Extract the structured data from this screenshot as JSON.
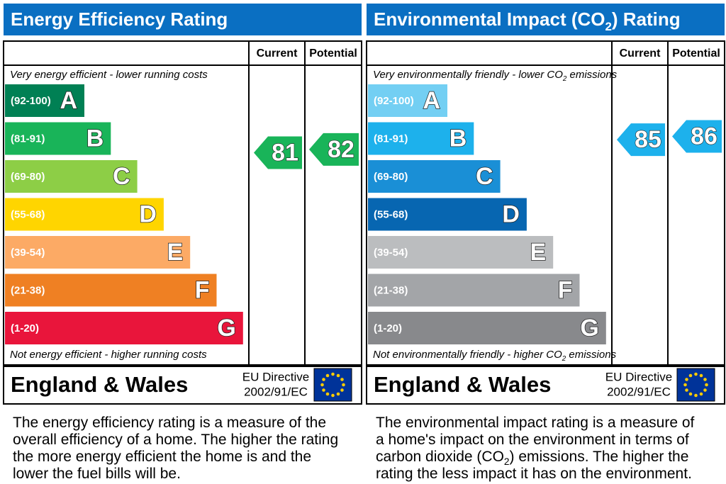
{
  "panels": [
    {
      "title": [
        "Energy Efficiency Rating"
      ],
      "col_current": "Current",
      "col_potential": "Potential",
      "top_note": [
        "Very energy efficient - lower running costs"
      ],
      "bottom_note": [
        "Not energy efficient - higher running costs"
      ],
      "bands": [
        {
          "range": "(92-100)",
          "letter": "A",
          "color": "#008054"
        },
        {
          "range": "(81-91)",
          "letter": "B",
          "color": "#19b459"
        },
        {
          "range": "(69-80)",
          "letter": "C",
          "color": "#8dce46"
        },
        {
          "range": "(55-68)",
          "letter": "D",
          "color": "#ffd500"
        },
        {
          "range": "(39-54)",
          "letter": "E",
          "color": "#fcaa65"
        },
        {
          "range": "(21-38)",
          "letter": "F",
          "color": "#ef8023"
        },
        {
          "range": "(1-20)",
          "letter": "G",
          "color": "#e9153b"
        }
      ],
      "current": 81,
      "potential": 82,
      "region": "England & Wales",
      "directive": "EU Directive",
      "directive_code": "2002/91/EC",
      "description": [
        [
          "The energy efficiency rating is a measure of the"
        ],
        [
          "overall efficiency of a home. The higher the rating"
        ],
        [
          "the more energy efficient the home is and the"
        ],
        [
          "lower the fuel bills will be."
        ]
      ]
    },
    {
      "title": [
        "Environmental Impact (CO",
        {
          "text": "2",
          "sub": true
        },
        ") Rating"
      ],
      "col_current": "Current",
      "col_potential": "Potential",
      "top_note": [
        "Very environmentally friendly - lower CO",
        {
          "text": "2",
          "sub": true
        },
        " emissions"
      ],
      "bottom_note": [
        "Not environmentally friendly - higher CO",
        {
          "text": "2",
          "sub": true
        },
        " emissions"
      ],
      "bands": [
        {
          "range": "(92-100)",
          "letter": "A",
          "color": "#73cff3"
        },
        {
          "range": "(81-91)",
          "letter": "B",
          "color": "#1db1ec"
        },
        {
          "range": "(69-80)",
          "letter": "C",
          "color": "#1a8fd6"
        },
        {
          "range": "(55-68)",
          "letter": "D",
          "color": "#0766b1"
        },
        {
          "range": "(39-54)",
          "letter": "E",
          "color": "#bbbdbf"
        },
        {
          "range": "(21-38)",
          "letter": "F",
          "color": "#a3a5a8"
        },
        {
          "range": "(1-20)",
          "letter": "G",
          "color": "#88898c"
        }
      ],
      "current": 85,
      "potential": 86,
      "region": "England & Wales",
      "directive": "EU Directive",
      "directive_code": "2002/91/EC",
      "description": [
        [
          "The environmental impact rating is a measure of"
        ],
        [
          "a home's impact on the environment in terms of"
        ],
        [
          "carbon dioxide (CO",
          {
            "text": "2",
            "sub": true
          },
          ") emissions. The higher the"
        ],
        [
          "rating the less impact it has on the environment."
        ]
      ]
    }
  ]
}
